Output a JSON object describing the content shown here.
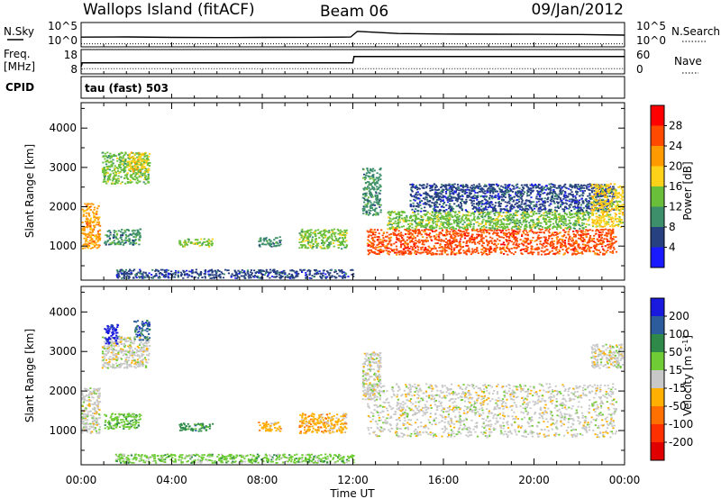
{
  "header": {
    "station": "Wallops Island (fitACF)",
    "beam": "Beam 06",
    "date": "09/Jan/2012"
  },
  "summary": {
    "nsky_label": "N.Sky",
    "nsearch_label": "N.Search",
    "freq_label_line1": "Freq.",
    "freq_label_line2": "[MHz]",
    "nave_label": "Nave",
    "cpid_label": "CPID",
    "cpid_value": "tau (fast) 503",
    "noise_left_ticks": [
      "10^5",
      "10^0"
    ],
    "noise_right_ticks": [
      "10^5",
      "10^0"
    ],
    "freq_ticks": [
      "18",
      "8"
    ],
    "nave_ticks": [
      "60",
      "0"
    ]
  },
  "axes": {
    "xlabel": "Time UT",
    "ylabel": "Slant Range [km]",
    "x_tick_labels": [
      "00:00",
      "04:00",
      "08:00",
      "12:00",
      "16:00",
      "20:00",
      "00:00"
    ],
    "y_tick_labels": [
      "1000",
      "2000",
      "3000",
      "4000"
    ]
  },
  "colorbars": {
    "power": {
      "label": "Power [dB]",
      "ticks": [
        "28",
        "24",
        "20",
        "16",
        "12",
        "8",
        "4"
      ],
      "colors": [
        "#ff0000",
        "#ff4a00",
        "#ff9a00",
        "#ffd21a",
        "#6abf3a",
        "#3d8f6b",
        "#27407f",
        "#1a1aff"
      ]
    },
    "velocity": {
      "label": "Velocity [m s",
      "label_sup": "-1",
      "label_close": "]",
      "ticks": [
        "200",
        "100",
        "50",
        "15",
        "-15",
        "-50",
        "-100",
        "-200"
      ],
      "colors": [
        "#1a1adf",
        "#2d5c9d",
        "#2f8a4a",
        "#6fcc35",
        "#c8c8c8",
        "#ffb000",
        "#ff7000",
        "#ff3000",
        "#e00000"
      ]
    }
  },
  "chart_data": [
    {
      "type": "line",
      "title": "N.Sky / N.Search",
      "x": [
        0,
        2,
        4,
        6,
        8,
        10,
        11.9,
        12.2,
        14,
        16,
        18,
        20,
        22,
        24
      ],
      "series": [
        {
          "name": "N.Sky",
          "values": [
            80,
            90,
            70,
            65,
            70,
            75,
            85,
            2000,
            600,
            450,
            400,
            380,
            350,
            250
          ]
        },
        {
          "name": "N.Search",
          "values": [
            2,
            2,
            2,
            2,
            2,
            2,
            2,
            2,
            2,
            2,
            2,
            2,
            2,
            2
          ]
        }
      ],
      "ylim": [
        1,
        100000
      ],
      "yscale": "log"
    },
    {
      "type": "line",
      "title": "Freq. / Nave",
      "x": [
        0,
        0.05,
        12,
        12.05,
        24
      ],
      "series": [
        {
          "name": "Freq.",
          "values": [
            10.5,
            12.5,
            12.5,
            15.5,
            15.5
          ]
        },
        {
          "name": "Nave",
          "values": [
            0,
            10,
            10,
            10,
            10
          ]
        }
      ],
      "ylim": [
        8,
        18
      ]
    },
    {
      "type": "heatmap",
      "title": "Power",
      "xlim": [
        0,
        24
      ],
      "ylim": [
        180,
        4600
      ],
      "zlim": [
        0,
        30
      ],
      "regions": [
        {
          "t0": 0.0,
          "t1": 0.8,
          "r0": 950,
          "r1": 2100,
          "level": 5
        },
        {
          "t0": 0.9,
          "t1": 3.0,
          "r0": 2600,
          "r1": 3400,
          "level": 3
        },
        {
          "t0": 2.0,
          "t1": 3.0,
          "r0": 2900,
          "r1": 3400,
          "level": 4
        },
        {
          "t0": 1.0,
          "t1": 2.6,
          "r0": 1050,
          "r1": 1450,
          "level": 2
        },
        {
          "t0": 4.3,
          "t1": 5.8,
          "r0": 1000,
          "r1": 1200,
          "level": 3
        },
        {
          "t0": 7.8,
          "t1": 8.8,
          "r0": 1000,
          "r1": 1250,
          "level": 2
        },
        {
          "t0": 9.6,
          "t1": 11.7,
          "r0": 950,
          "r1": 1450,
          "level": 3
        },
        {
          "t0": 1.5,
          "t1": 12.0,
          "r0": 200,
          "r1": 420,
          "level": 1
        },
        {
          "t0": 12.6,
          "t1": 23.6,
          "r0": 800,
          "r1": 1450,
          "level": 6
        },
        {
          "t0": 13.5,
          "t1": 22.5,
          "r0": 1450,
          "r1": 1900,
          "level": 3
        },
        {
          "t0": 14.5,
          "t1": 23.5,
          "r0": 1900,
          "r1": 2600,
          "level": 1
        },
        {
          "t0": 12.4,
          "t1": 13.2,
          "r0": 1800,
          "r1": 3000,
          "level": 2
        },
        {
          "t0": 22.5,
          "t1": 23.9,
          "r0": 1500,
          "r1": 2600,
          "level": 4
        }
      ]
    },
    {
      "type": "heatmap",
      "title": "Velocity",
      "xlim": [
        0,
        24
      ],
      "ylim": [
        180,
        4600
      ],
      "zlim": [
        -200,
        200
      ],
      "regions": [
        {
          "t0": 0.0,
          "t1": 0.8,
          "r0": 950,
          "r1": 2100,
          "level": 4
        },
        {
          "t0": 0.9,
          "t1": 3.0,
          "r0": 2600,
          "r1": 3400,
          "level": 4
        },
        {
          "t0": 1.0,
          "t1": 1.6,
          "r0": 3200,
          "r1": 3700,
          "level": 0
        },
        {
          "t0": 2.3,
          "t1": 3.0,
          "r0": 3300,
          "r1": 3800,
          "level": 1
        },
        {
          "t0": 1.0,
          "t1": 2.6,
          "r0": 1050,
          "r1": 1450,
          "level": 3
        },
        {
          "t0": 4.3,
          "t1": 5.8,
          "r0": 1000,
          "r1": 1200,
          "level": 2
        },
        {
          "t0": 7.8,
          "t1": 8.8,
          "r0": 1000,
          "r1": 1250,
          "level": 5
        },
        {
          "t0": 9.6,
          "t1": 11.7,
          "r0": 950,
          "r1": 1450,
          "level": 5
        },
        {
          "t0": 1.5,
          "t1": 12.0,
          "r0": 200,
          "r1": 420,
          "level": 3
        },
        {
          "t0": 12.6,
          "t1": 23.6,
          "r0": 850,
          "r1": 2200,
          "level": 4
        },
        {
          "t0": 12.4,
          "t1": 13.2,
          "r0": 1800,
          "r1": 3000,
          "level": 4
        },
        {
          "t0": 22.5,
          "t1": 23.9,
          "r0": 2600,
          "r1": 3200,
          "level": 4
        }
      ]
    }
  ]
}
